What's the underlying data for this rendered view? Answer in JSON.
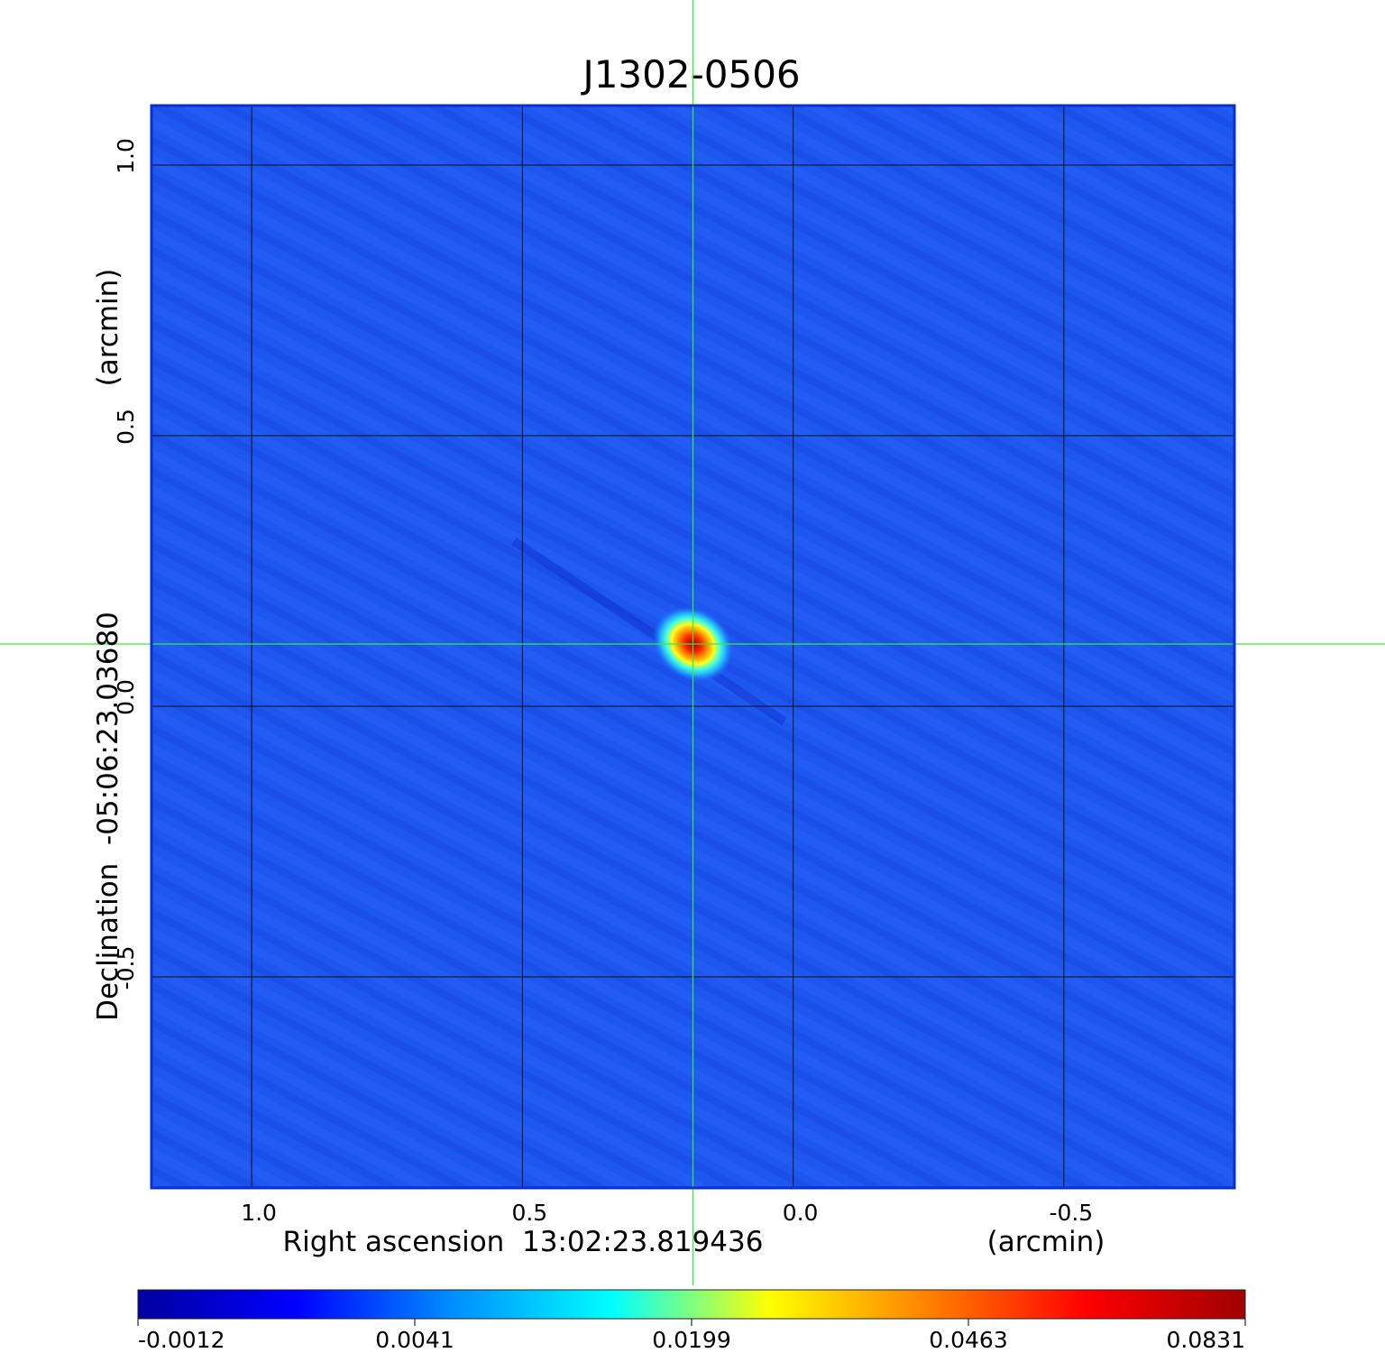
{
  "chart_data": {
    "type": "heatmap",
    "title": "J1302-0506",
    "title_color": "#1010d0",
    "xlabel": {
      "text": "Right ascension  13:02:23.819436",
      "units": "(arcmin)"
    },
    "ylabel": {
      "text": "Declination  -05:06:23.03680",
      "units": "(arcmin)"
    },
    "x_ticks": [
      {
        "value": 1.0,
        "label": "1.0"
      },
      {
        "value": 0.5,
        "label": "0.5"
      },
      {
        "value": 0.0,
        "label": "0.0"
      },
      {
        "value": -0.5,
        "label": "-0.5"
      }
    ],
    "y_ticks": [
      {
        "value": 1.0,
        "label": "1.0"
      },
      {
        "value": 0.5,
        "label": "0.5"
      },
      {
        "value": 0.0,
        "label": "0.0"
      },
      {
        "value": -0.5,
        "label": "-0.5"
      }
    ],
    "xlim": [
      1.185,
      -0.815
    ],
    "ylim": [
      -0.89,
      1.11
    ],
    "grid": true,
    "background_value": 0.0,
    "background_color": "#1e56f0",
    "source": {
      "x": 0.185,
      "y": 0.115,
      "peak": 0.0831
    },
    "crosshair": {
      "x": 0.185,
      "y": 0.115,
      "color": "#33ee33"
    },
    "colorbar": {
      "tick_labels": [
        "-0.0012",
        "0.0041",
        "0.0199",
        "0.0463",
        "0.0831"
      ],
      "colors": [
        "#0000a0",
        "#0000ff",
        "#0090ff",
        "#00ffff",
        "#ffff00",
        "#ff8000",
        "#ff0000",
        "#a00000"
      ]
    }
  }
}
